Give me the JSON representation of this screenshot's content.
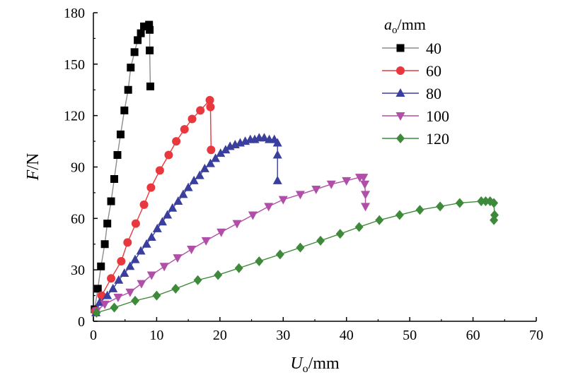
{
  "chart_data": {
    "type": "line",
    "xlabel": {
      "var": "U",
      "sub": "o",
      "unit": "/mm"
    },
    "ylabel": {
      "var": "F",
      "unit": "/N"
    },
    "xlim": [
      0,
      70
    ],
    "ylim": [
      0,
      180
    ],
    "xticks": [
      0,
      10,
      20,
      30,
      40,
      50,
      60,
      70
    ],
    "yticks": [
      0,
      30,
      60,
      90,
      120,
      150,
      180
    ],
    "grid": false,
    "legend": {
      "title": {
        "var": "a",
        "sub": "o",
        "unit": "/mm"
      },
      "placement": "top-right"
    },
    "series": [
      {
        "name": "40",
        "color": "#000000",
        "line_color": "#8c8c8c",
        "marker": "square",
        "points": [
          [
            0.2,
            7
          ],
          [
            0.7,
            19
          ],
          [
            1.2,
            32
          ],
          [
            1.8,
            45
          ],
          [
            2.2,
            57
          ],
          [
            2.8,
            70
          ],
          [
            3.3,
            83
          ],
          [
            3.8,
            97
          ],
          [
            4.3,
            109
          ],
          [
            4.9,
            123
          ],
          [
            5.5,
            135
          ],
          [
            5.9,
            148
          ],
          [
            6.5,
            157
          ],
          [
            7.0,
            164
          ],
          [
            7.5,
            168
          ],
          [
            8.0,
            172
          ],
          [
            8.6,
            172
          ],
          [
            8.8,
            173
          ],
          [
            8.9,
            170
          ],
          [
            8.9,
            158
          ],
          [
            9.0,
            137
          ]
        ]
      },
      {
        "name": "60",
        "color": "#e8383d",
        "marker": "circle",
        "points": [
          [
            0.3,
            6
          ],
          [
            1.3,
            15
          ],
          [
            2.8,
            25
          ],
          [
            4.4,
            35
          ],
          [
            5.4,
            46
          ],
          [
            6.7,
            57
          ],
          [
            8.0,
            68
          ],
          [
            9.1,
            78
          ],
          [
            10.5,
            88
          ],
          [
            11.9,
            97
          ],
          [
            13.1,
            105
          ],
          [
            14.4,
            112
          ],
          [
            15.6,
            118
          ],
          [
            16.9,
            123
          ],
          [
            18.4,
            129
          ],
          [
            18.5,
            125
          ],
          [
            18.6,
            100
          ]
        ]
      },
      {
        "name": "80",
        "color": "#3a3f9d",
        "marker": "triangle-up",
        "points": [
          [
            0.4,
            5
          ],
          [
            1.0,
            11
          ],
          [
            2.2,
            15
          ],
          [
            3.1,
            19
          ],
          [
            4.0,
            24
          ],
          [
            4.9,
            28
          ],
          [
            5.8,
            32
          ],
          [
            6.6,
            36
          ],
          [
            7.5,
            41
          ],
          [
            8.4,
            45
          ],
          [
            9.2,
            49
          ],
          [
            10.1,
            54
          ],
          [
            10.9,
            58
          ],
          [
            11.7,
            62
          ],
          [
            12.5,
            66
          ],
          [
            13.4,
            70
          ],
          [
            14.2,
            74
          ],
          [
            15.0,
            78
          ],
          [
            15.9,
            82
          ],
          [
            16.8,
            85
          ],
          [
            17.6,
            89
          ],
          [
            18.5,
            92
          ],
          [
            19.3,
            95
          ],
          [
            20.1,
            98
          ],
          [
            20.9,
            100
          ],
          [
            21.6,
            102
          ],
          [
            22.4,
            103
          ],
          [
            23.2,
            104
          ],
          [
            24.0,
            105
          ],
          [
            24.8,
            106
          ],
          [
            25.5,
            106
          ],
          [
            26.2,
            107
          ],
          [
            27.0,
            107
          ],
          [
            27.8,
            106
          ],
          [
            28.6,
            106
          ],
          [
            29.1,
            104
          ],
          [
            29.1,
            97
          ],
          [
            29.1,
            82
          ]
        ]
      },
      {
        "name": "100",
        "color": "#b04fa8",
        "marker": "triangle-down",
        "points": [
          [
            0.5,
            6
          ],
          [
            1.8,
            10
          ],
          [
            3.9,
            14
          ],
          [
            5.8,
            17
          ],
          [
            7.6,
            22
          ],
          [
            9.2,
            27
          ],
          [
            11.2,
            32
          ],
          [
            13.3,
            37
          ],
          [
            15.5,
            42
          ],
          [
            17.8,
            47
          ],
          [
            20.2,
            52
          ],
          [
            22.7,
            57
          ],
          [
            25.2,
            62
          ],
          [
            27.7,
            67
          ],
          [
            30.0,
            71
          ],
          [
            32.7,
            74
          ],
          [
            35.2,
            77
          ],
          [
            37.6,
            80
          ],
          [
            40.0,
            82
          ],
          [
            42.1,
            84
          ],
          [
            42.7,
            84
          ],
          [
            42.9,
            80
          ],
          [
            43.0,
            74
          ],
          [
            43.0,
            67
          ]
        ]
      },
      {
        "name": "120",
        "color": "#3e8a3a",
        "marker": "diamond",
        "points": [
          [
            0.5,
            5
          ],
          [
            3.3,
            8
          ],
          [
            6.6,
            12
          ],
          [
            10.0,
            15
          ],
          [
            13.0,
            19
          ],
          [
            16.5,
            24
          ],
          [
            19.7,
            27
          ],
          [
            23.0,
            31
          ],
          [
            26.2,
            35
          ],
          [
            29.5,
            39
          ],
          [
            32.7,
            43
          ],
          [
            35.9,
            47
          ],
          [
            39.0,
            51
          ],
          [
            42.0,
            55
          ],
          [
            45.2,
            59
          ],
          [
            48.4,
            62
          ],
          [
            51.6,
            65
          ],
          [
            54.8,
            67
          ],
          [
            57.9,
            69
          ],
          [
            61.3,
            70
          ],
          [
            62.0,
            70
          ],
          [
            62.7,
            70
          ],
          [
            63.3,
            69
          ],
          [
            63.4,
            62
          ],
          [
            63.3,
            59
          ]
        ]
      }
    ]
  }
}
